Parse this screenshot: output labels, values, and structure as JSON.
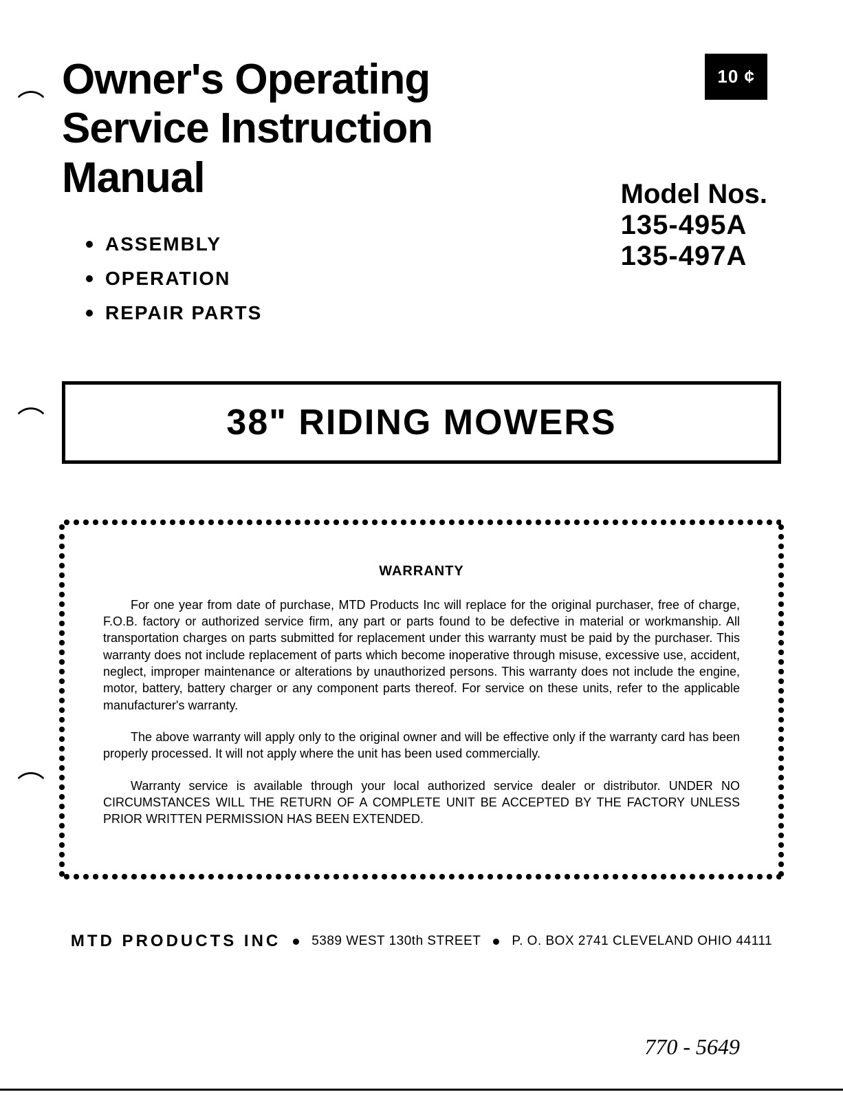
{
  "document": {
    "title_line1": "Owner's Operating",
    "title_line2": "Service Instruction",
    "title_line3": "Manual",
    "price": "10 ¢",
    "bullets": [
      "ASSEMBLY",
      "OPERATION",
      "REPAIR PARTS"
    ],
    "model": {
      "heading": "Model Nos.",
      "number1": "135-495A",
      "number2": "135-497A"
    },
    "product_title": "38\" RIDING MOWERS",
    "warranty": {
      "heading": "WARRANTY",
      "para1": "For one year from date of purchase, MTD Products Inc will replace for the original purchaser, free of charge, F.O.B. factory or authorized service firm, any part or parts found to be defective in material or workmanship. All transportation charges on parts submitted for replacement under this warranty must be paid by the purchaser. This warranty does not include replacement of parts which become inoperative through misuse, excessive use, accident, neglect, improper maintenance or alterations by unauthorized persons. This warranty does not include the engine, motor, battery, battery charger or any component parts thereof. For service on these units, refer to the applicable manufacturer's warranty.",
      "para2": "The above warranty will apply only to the original owner and will be effective only if the warranty card has been properly processed. It will not apply where the unit has been used commercially.",
      "para3": "Warranty service is available through your local authorized service dealer or distributor. UNDER NO CIRCUMSTANCES WILL THE RETURN OF A COMPLETE UNIT BE ACCEPTED BY THE FACTORY UNLESS PRIOR WRITTEN PERMISSION HAS BEEN EXTENDED."
    },
    "footer": {
      "company": "MTD PRODUCTS INC",
      "address1": "5389 WEST 130th STREET",
      "address2": "P. O. BOX 2741 CLEVELAND OHIO 44111"
    },
    "handwritten": "770 - 5649",
    "colors": {
      "background": "#ffffff",
      "text": "#000000",
      "badge_bg": "#000000",
      "badge_text": "#ffffff"
    },
    "typography": {
      "title_fontsize": 62,
      "model_fontsize": 40,
      "bullet_fontsize": 28,
      "product_title_fontsize": 52,
      "warranty_heading_fontsize": 20,
      "warranty_body_fontsize": 18,
      "footer_company_fontsize": 24,
      "footer_address_fontsize": 19
    }
  }
}
